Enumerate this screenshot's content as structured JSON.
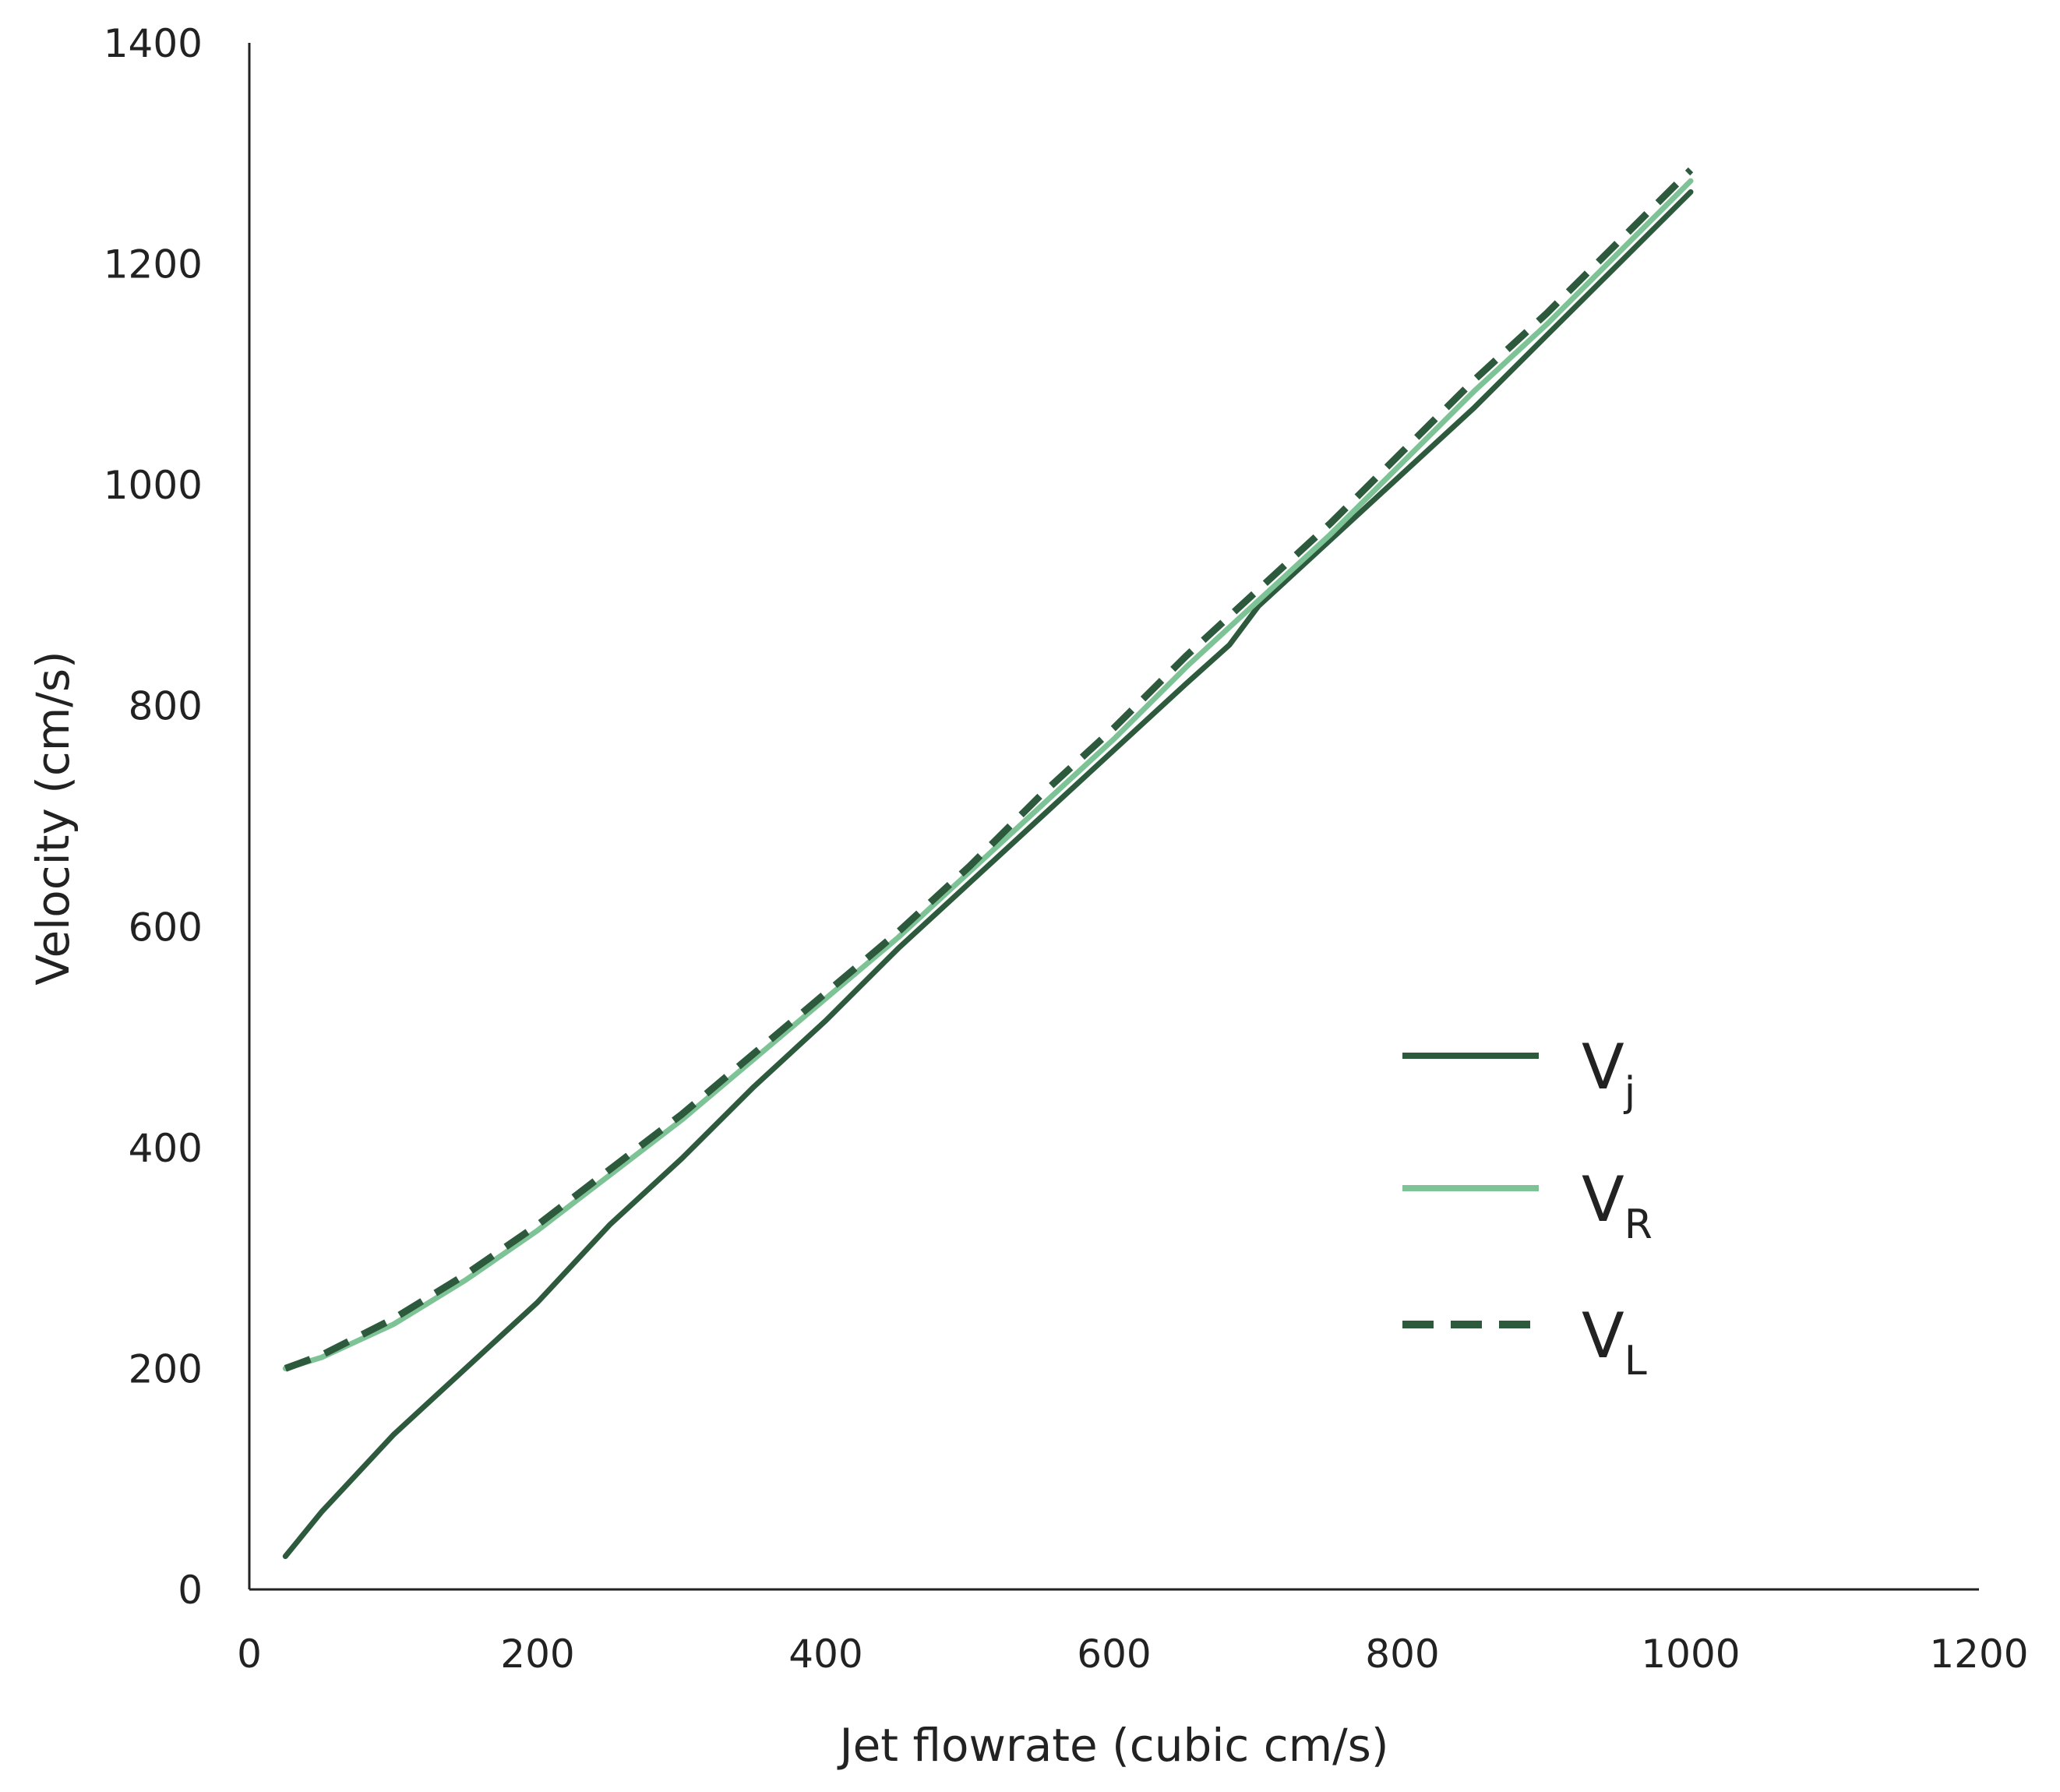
{
  "chart_data": {
    "type": "line",
    "title": "",
    "xlabel": "Jet flowrate  (cubic cm/s)",
    "ylabel": "Velocity (cm/s)",
    "xlim": [
      0,
      1200
    ],
    "ylim": [
      0,
      1400
    ],
    "x_ticks": [
      "0",
      "200",
      "400",
      "600",
      "800",
      "1000",
      "1200"
    ],
    "y_ticks": [
      "0",
      "200",
      "400",
      "600",
      "800",
      "1000",
      "1200",
      "1400"
    ],
    "grid": false,
    "legend_position": "right",
    "series": [
      {
        "name": "Vj",
        "label_main": "V",
        "label_sub": "j",
        "color": "#2d5a3d",
        "dash": "solid",
        "x": [
          25,
          50,
          100,
          150,
          200,
          250,
          300,
          350,
          400,
          450,
          500,
          550,
          600,
          650,
          680,
          700,
          750,
          800,
          850,
          900,
          950,
          1000
        ],
        "y": [
          30,
          70,
          140,
          200,
          260,
          330,
          390,
          455,
          515,
          580,
          640,
          700,
          760,
          820,
          855,
          890,
          950,
          1010,
          1070,
          1135,
          1200,
          1265
        ]
      },
      {
        "name": "VR",
        "label_main": "V",
        "label_sub": "R",
        "color": "#7dc395",
        "dash": "solid",
        "x": [
          25,
          50,
          100,
          150,
          200,
          250,
          300,
          350,
          400,
          450,
          500,
          550,
          600,
          650,
          700,
          750,
          800,
          850,
          900,
          950,
          1000
        ],
        "y": [
          200,
          210,
          240,
          280,
          325,
          375,
          425,
          480,
          535,
          590,
          650,
          710,
          770,
          835,
          895,
          955,
          1020,
          1085,
          1145,
          1210,
          1275
        ]
      },
      {
        "name": "VL",
        "label_main": "V",
        "label_sub": "L",
        "color": "#2d5a3d",
        "dash": "dashed",
        "x": [
          25,
          50,
          100,
          150,
          200,
          250,
          300,
          350,
          400,
          450,
          500,
          550,
          600,
          650,
          700,
          750,
          800,
          850,
          900,
          950,
          1000
        ],
        "y": [
          200,
          212,
          245,
          285,
          330,
          380,
          430,
          485,
          540,
          595,
          655,
          720,
          780,
          845,
          905,
          965,
          1030,
          1095,
          1155,
          1220,
          1285
        ]
      }
    ]
  }
}
